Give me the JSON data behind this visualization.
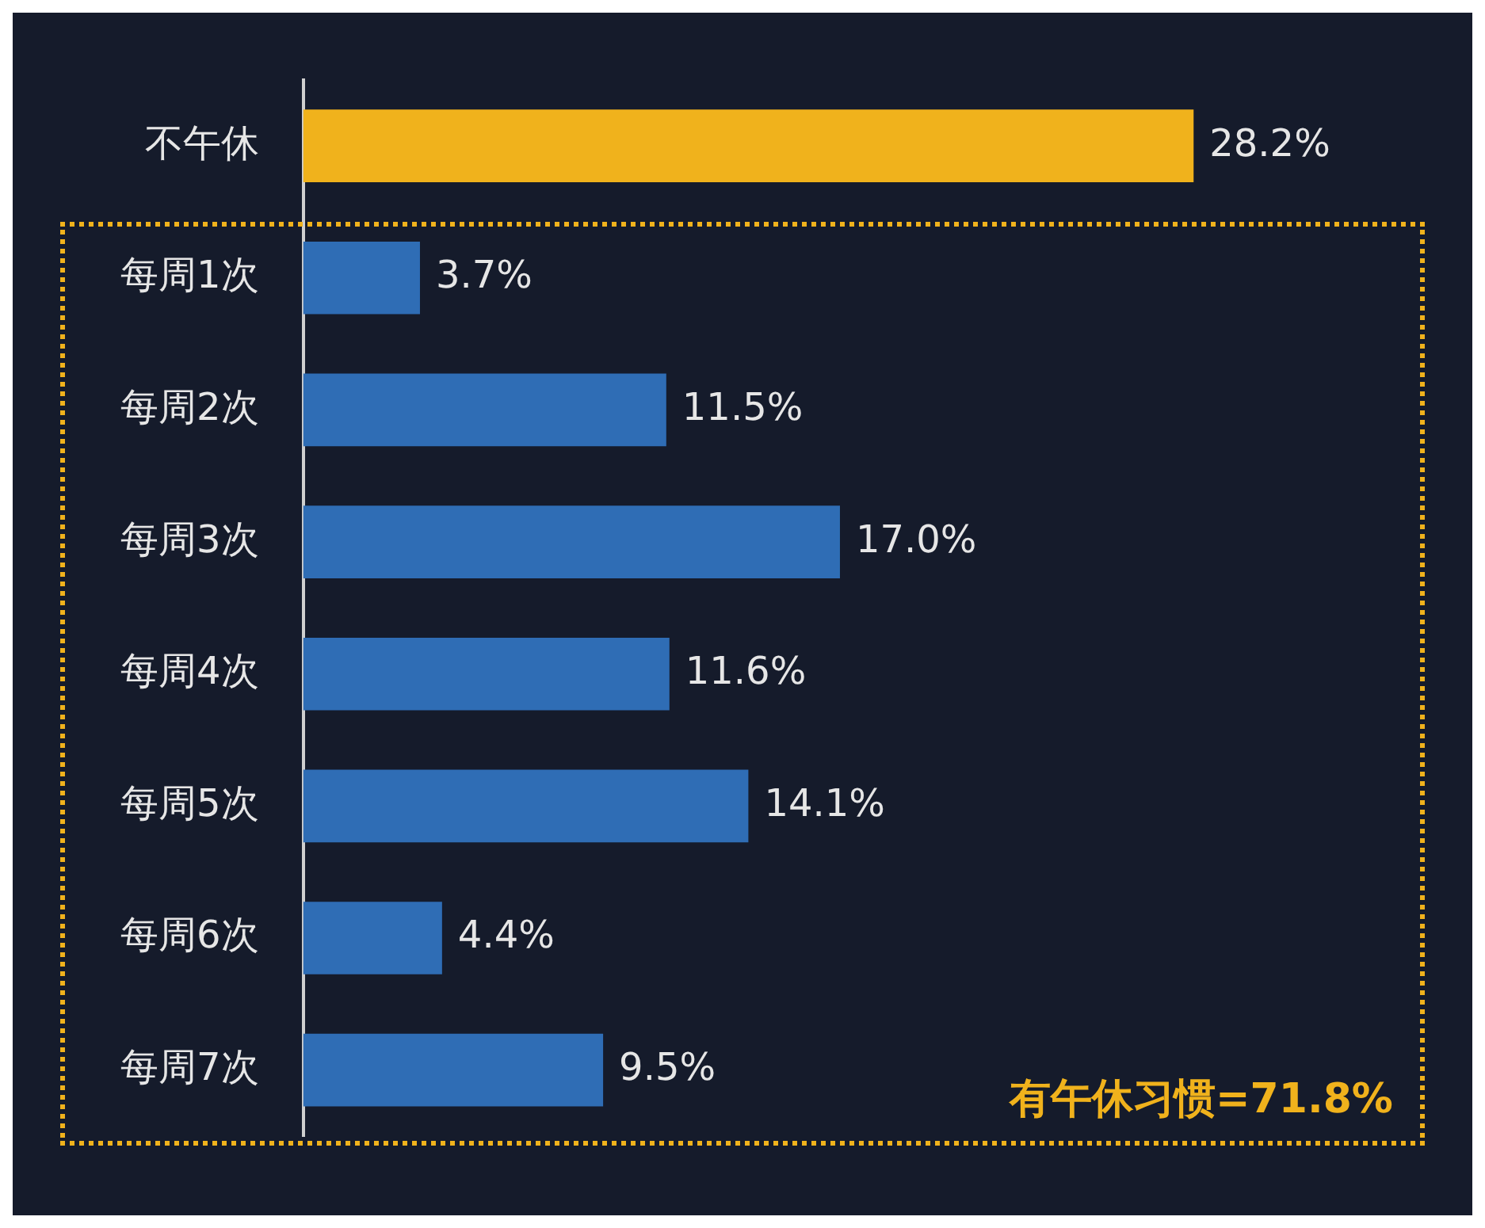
{
  "chart_data": {
    "type": "bar",
    "orientation": "horizontal",
    "tick_labels": "y",
    "categories": [
      "不午休",
      "每周1次",
      "每周2次",
      "每周3次",
      "每周4次",
      "每周5次",
      "每周6次",
      "每周7次"
    ],
    "values": [
      28.2,
      3.7,
      11.5,
      17.0,
      11.6,
      14.1,
      4.4,
      9.5
    ],
    "colors": [
      "#f0b21c",
      "#2f6db5",
      "#2f6db5",
      "#2f6db5",
      "#2f6db5",
      "#2f6db5",
      "#2f6db5",
      "#2f6db5"
    ],
    "value_labels": [
      "28.2%",
      "3.7%",
      "11.5%",
      "17.0%",
      "11.6%",
      "14.1%",
      "4.4%",
      "9.5%"
    ],
    "annotations": [
      "有午休习惯=71.8%"
    ]
  }
}
